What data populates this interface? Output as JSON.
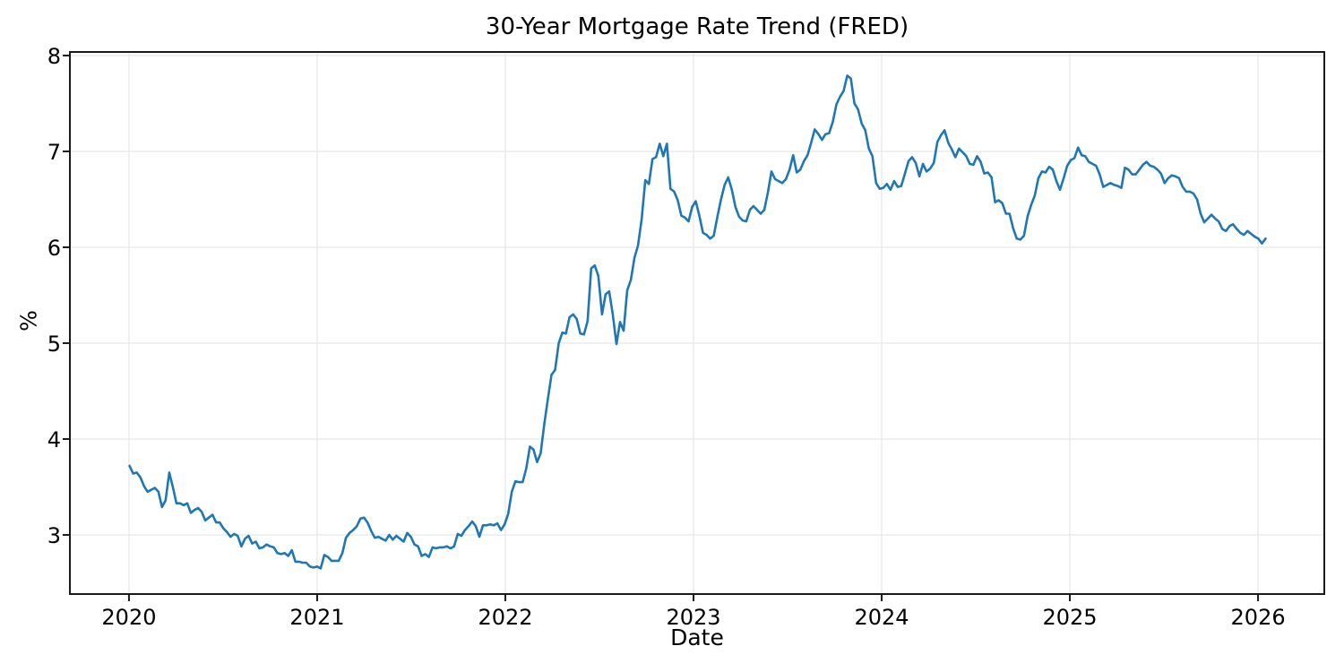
{
  "chart_data": {
    "type": "line",
    "title": "30-Year Mortgage Rate Trend (FRED)",
    "xlabel": "Date",
    "ylabel": "%",
    "grid": true,
    "legend": "none",
    "line_color": "#1f77b4",
    "axis_color": "#1a1a1a",
    "grid_color": "#e8e8e8",
    "xlim": [
      2019.686,
      2026.352
    ],
    "ylim": [
      2.383,
      8.037
    ],
    "x_ticks": [
      {
        "label": "2020",
        "value": 2020
      },
      {
        "label": "2021",
        "value": 2021
      },
      {
        "label": "2022",
        "value": 2022
      },
      {
        "label": "2023",
        "value": 2023
      },
      {
        "label": "2024",
        "value": 2024
      },
      {
        "label": "2025",
        "value": 2025
      },
      {
        "label": "2026",
        "value": 2026
      }
    ],
    "y_ticks": [
      {
        "label": "3",
        "value": 3
      },
      {
        "label": "4",
        "value": 4
      },
      {
        "label": "5",
        "value": 5
      },
      {
        "label": "6",
        "value": 6
      },
      {
        "label": "7",
        "value": 7
      },
      {
        "label": "8",
        "value": 8
      }
    ],
    "series": [
      {
        "frequency": "weekly",
        "start_year": 2020.003,
        "interval_years": 0.019165,
        "values": [
          3.72,
          3.64,
          3.65,
          3.6,
          3.51,
          3.45,
          3.47,
          3.49,
          3.45,
          3.29,
          3.36,
          3.65,
          3.5,
          3.33,
          3.33,
          3.31,
          3.33,
          3.23,
          3.26,
          3.28,
          3.24,
          3.15,
          3.18,
          3.21,
          3.13,
          3.13,
          3.07,
          3.03,
          2.98,
          3.01,
          2.99,
          2.88,
          2.96,
          2.99,
          2.91,
          2.93,
          2.86,
          2.87,
          2.9,
          2.88,
          2.87,
          2.81,
          2.8,
          2.81,
          2.78,
          2.84,
          2.72,
          2.72,
          2.71,
          2.71,
          2.67,
          2.66,
          2.67,
          2.65,
          2.79,
          2.77,
          2.73,
          2.73,
          2.73,
          2.81,
          2.97,
          3.02,
          3.05,
          3.09,
          3.17,
          3.18,
          3.13,
          3.04,
          2.97,
          2.98,
          2.96,
          2.94,
          3.0,
          2.95,
          2.99,
          2.96,
          2.93,
          3.02,
          2.98,
          2.9,
          2.88,
          2.78,
          2.8,
          2.77,
          2.87,
          2.86,
          2.87,
          2.87,
          2.88,
          2.86,
          2.88,
          3.01,
          2.99,
          3.05,
          3.09,
          3.14,
          3.09,
          2.98,
          3.1,
          3.1,
          3.11,
          3.1,
          3.12,
          3.05,
          3.11,
          3.22,
          3.45,
          3.56,
          3.55,
          3.55,
          3.69,
          3.92,
          3.89,
          3.76,
          3.85,
          4.16,
          4.42,
          4.67,
          4.72,
          5.0,
          5.11,
          5.1,
          5.27,
          5.3,
          5.25,
          5.1,
          5.09,
          5.23,
          5.78,
          5.81,
          5.7,
          5.3,
          5.51,
          5.54,
          5.3,
          4.99,
          5.22,
          5.13,
          5.55,
          5.66,
          5.89,
          6.02,
          6.29,
          6.7,
          6.66,
          6.92,
          6.94,
          7.08,
          6.95,
          7.08,
          6.61,
          6.58,
          6.49,
          6.33,
          6.31,
          6.27,
          6.42,
          6.48,
          6.33,
          6.15,
          6.13,
          6.09,
          6.12,
          6.32,
          6.5,
          6.65,
          6.73,
          6.6,
          6.42,
          6.32,
          6.28,
          6.27,
          6.39,
          6.43,
          6.39,
          6.35,
          6.39,
          6.57,
          6.79,
          6.71,
          6.69,
          6.67,
          6.71,
          6.81,
          6.96,
          6.78,
          6.81,
          6.9,
          6.96,
          7.09,
          7.23,
          7.18,
          7.12,
          7.18,
          7.19,
          7.31,
          7.49,
          7.57,
          7.63,
          7.79,
          7.76,
          7.5,
          7.44,
          7.29,
          7.22,
          7.03,
          6.95,
          6.67,
          6.61,
          6.62,
          6.66,
          6.6,
          6.69,
          6.63,
          6.64,
          6.77,
          6.9,
          6.94,
          6.88,
          6.74,
          6.87,
          6.79,
          6.82,
          6.88,
          7.1,
          7.17,
          7.22,
          7.09,
          7.02,
          6.94,
          7.03,
          6.99,
          6.95,
          6.87,
          6.86,
          6.95,
          6.89,
          6.77,
          6.78,
          6.73,
          6.47,
          6.49,
          6.46,
          6.35,
          6.35,
          6.2,
          6.09,
          6.08,
          6.12,
          6.32,
          6.44,
          6.54,
          6.72,
          6.79,
          6.78,
          6.84,
          6.81,
          6.69,
          6.6,
          6.72,
          6.85,
          6.91,
          6.93,
          7.04,
          6.96,
          6.95,
          6.89,
          6.87,
          6.85,
          6.76,
          6.63,
          6.65,
          6.67,
          6.65,
          6.64,
          6.62,
          6.83,
          6.81,
          6.76,
          6.76,
          6.81,
          6.86,
          6.89,
          6.85,
          6.84,
          6.81,
          6.77,
          6.67,
          6.72,
          6.75,
          6.74,
          6.72,
          6.63,
          6.58,
          6.58,
          6.56,
          6.5,
          6.35,
          6.26,
          6.3,
          6.34,
          6.3,
          6.27,
          6.19,
          6.17,
          6.22,
          6.24,
          6.19,
          6.15,
          6.13,
          6.17,
          6.14,
          6.11,
          6.09,
          6.04,
          6.09
        ]
      }
    ]
  }
}
